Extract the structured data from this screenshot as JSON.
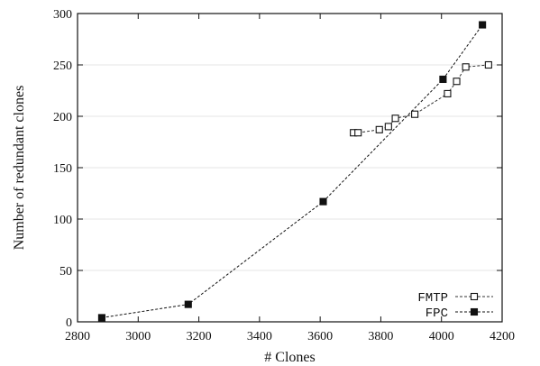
{
  "chart_data": {
    "type": "line",
    "title": "",
    "xlabel": "# Clones",
    "ylabel": "Number of redundant clones",
    "xlim": [
      2800,
      4200
    ],
    "ylim": [
      0,
      300
    ],
    "xticks": [
      2800,
      3000,
      3200,
      3400,
      3600,
      3800,
      4000,
      4200
    ],
    "yticks": [
      0,
      50,
      100,
      150,
      200,
      250,
      300
    ],
    "grid": true,
    "legend_position": "bottom-right",
    "series": [
      {
        "name": "FMTP",
        "marker": "open-square",
        "line": "dashed",
        "color": "#333333",
        "points": [
          {
            "x": 3710,
            "y": 184
          },
          {
            "x": 3725,
            "y": 184
          },
          {
            "x": 3795,
            "y": 187
          },
          {
            "x": 3825,
            "y": 190
          },
          {
            "x": 3848,
            "y": 198
          },
          {
            "x": 3912,
            "y": 202
          },
          {
            "x": 4020,
            "y": 222
          },
          {
            "x": 4050,
            "y": 234
          },
          {
            "x": 4080,
            "y": 248
          },
          {
            "x": 4155,
            "y": 250
          }
        ]
      },
      {
        "name": "FPC",
        "marker": "filled-square",
        "line": "dashed",
        "color": "#111111",
        "points": [
          {
            "x": 2880,
            "y": 4
          },
          {
            "x": 3165,
            "y": 17
          },
          {
            "x": 3610,
            "y": 117
          },
          {
            "x": 4005,
            "y": 236
          },
          {
            "x": 4135,
            "y": 289
          }
        ]
      }
    ]
  }
}
